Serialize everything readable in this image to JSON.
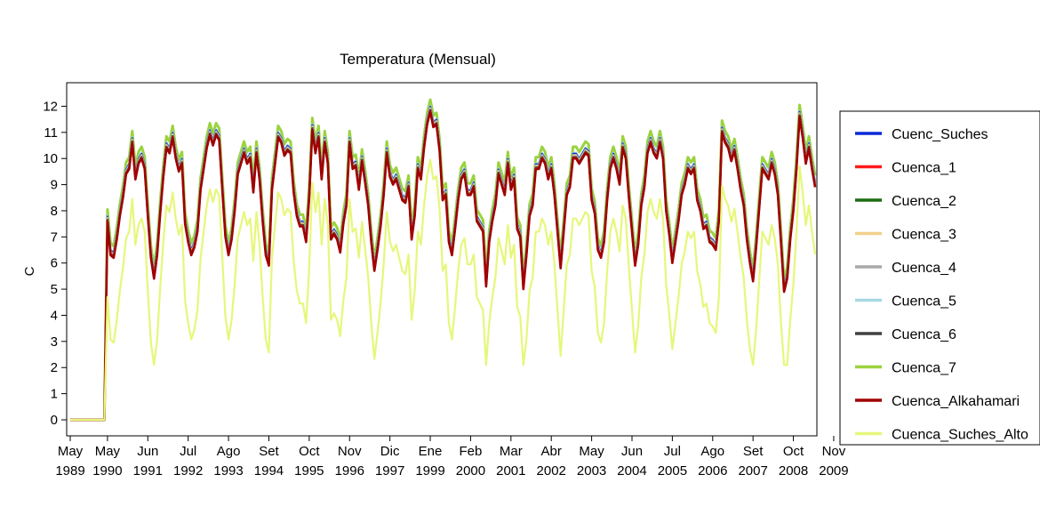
{
  "chart_data": {
    "type": "line",
    "title": "Temperatura (Mensual)",
    "xlabel": "",
    "ylabel": "C",
    "ylim": [
      0,
      12.9
    ],
    "yticks": [
      0,
      1,
      2,
      3,
      4,
      5,
      6,
      7,
      8,
      9,
      10,
      11,
      12
    ],
    "grid": false,
    "legend_position": "right",
    "x_tick_labels": [
      {
        "month": "May",
        "year": "1989"
      },
      {
        "month": "May",
        "year": "1990"
      },
      {
        "month": "Jun",
        "year": "1991"
      },
      {
        "month": "Jul",
        "year": "1992"
      },
      {
        "month": "Ago",
        "year": "1993"
      },
      {
        "month": "Set",
        "year": "1994"
      },
      {
        "month": "Oct",
        "year": "1995"
      },
      {
        "month": "Nov",
        "year": "1996"
      },
      {
        "month": "Dic",
        "year": "1997"
      },
      {
        "month": "Ene",
        "year": "1999"
      },
      {
        "month": "Feb",
        "year": "2000"
      },
      {
        "month": "Mar",
        "year": "2001"
      },
      {
        "month": "Abr",
        "year": "2002"
      },
      {
        "month": "May",
        "year": "2003"
      },
      {
        "month": "Jun",
        "year": "2004"
      },
      {
        "month": "Jul",
        "year": "2005"
      },
      {
        "month": "Ago",
        "year": "2006"
      },
      {
        "month": "Set",
        "year": "2007"
      },
      {
        "month": "Oct",
        "year": "2008"
      },
      {
        "month": "Nov",
        "year": "2009"
      }
    ],
    "x_tick_months": [
      0,
      12,
      25,
      38,
      51,
      64,
      77,
      90,
      103,
      116,
      129,
      142,
      155,
      168,
      181,
      194,
      207,
      220,
      233,
      246
    ],
    "start_month_index": 0,
    "base_series": {
      "description_free": true,
      "values": [
        0,
        0,
        0,
        0,
        0,
        0,
        0,
        0,
        0,
        0,
        0,
        0,
        7.6,
        6.3,
        6.2,
        6.9,
        7.8,
        8.5,
        9.4,
        9.6,
        10.6,
        9.2,
        9.8,
        10.0,
        9.6,
        7.8,
        6.2,
        5.4,
        6.3,
        7.9,
        9.3,
        10.4,
        10.2,
        10.8,
        10.0,
        9.5,
        9.8,
        7.5,
        6.8,
        6.3,
        6.6,
        7.2,
        8.8,
        9.6,
        10.4,
        10.9,
        10.5,
        10.9,
        10.7,
        8.8,
        7.0,
        6.3,
        6.9,
        8.0,
        9.4,
        9.8,
        10.2,
        9.8,
        10.0,
        8.7,
        10.2,
        9.2,
        7.6,
        6.3,
        5.9,
        8.8,
        9.8,
        10.8,
        10.6,
        10.1,
        10.3,
        10.2,
        8.7,
        7.8,
        7.4,
        7.4,
        6.8,
        8.5,
        11.1,
        10.2,
        10.8,
        9.2,
        10.6,
        9.8,
        6.9,
        7.1,
        6.9,
        6.4,
        7.5,
        8.2,
        10.6,
        9.6,
        9.7,
        8.8,
        9.9,
        9.1,
        8.2,
        6.8,
        5.7,
        6.5,
        7.4,
        8.6,
        10.2,
        9.3,
        9.0,
        9.2,
        8.8,
        8.4,
        8.3,
        8.9,
        6.9,
        7.8,
        9.6,
        9.2,
        10.4,
        11.3,
        11.8,
        11.2,
        11.3,
        10.3,
        8.4,
        8.6,
        6.8,
        6.3,
        7.3,
        8.4,
        9.2,
        9.4,
        8.6,
        8.6,
        8.9,
        7.6,
        7.4,
        7.2,
        5.1,
        6.8,
        7.6,
        8.2,
        9.4,
        9.0,
        8.6,
        9.8,
        8.8,
        9.2,
        7.3,
        7.0,
        5.0,
        6.3,
        7.8,
        8.2,
        9.6,
        9.6,
        10.0,
        9.8,
        9.2,
        9.6,
        8.6,
        7.2,
        5.8,
        7.2,
        8.6,
        8.9,
        10.0,
        10.0,
        9.8,
        10.0,
        10.2,
        10.1,
        8.4,
        7.9,
        6.5,
        6.2,
        6.8,
        8.4,
        9.6,
        10.0,
        9.6,
        9.0,
        10.4,
        10.0,
        8.5,
        7.2,
        5.9,
        6.7,
        8.2,
        8.9,
        10.2,
        10.6,
        10.2,
        10.0,
        10.6,
        10.0,
        8.0,
        7.1,
        6.0,
        6.8,
        7.6,
        8.6,
        9.0,
        9.6,
        9.4,
        9.6,
        8.4,
        8.0,
        7.3,
        7.4,
        6.8,
        6.7,
        6.5,
        7.6,
        11.0,
        10.6,
        10.4,
        9.9,
        10.3,
        9.6,
        8.8,
        8.2,
        6.9,
        6.0,
        5.3,
        6.6,
        8.1,
        9.6,
        9.4,
        9.2,
        9.8,
        9.4,
        8.6,
        6.8,
        4.9,
        5.4,
        6.9,
        8.0,
        9.6,
        11.6,
        10.8,
        9.8,
        10.4,
        9.6,
        8.9
      ]
    },
    "series": [
      {
        "name": "Cuenc_Suches",
        "color": "#0b2bd6",
        "offset": 0.18
      },
      {
        "name": "Cuenca_1",
        "color": "#ff1a1a",
        "offset": 0.02
      },
      {
        "name": "Cuenca_2",
        "color": "#1a6b12",
        "offset": 0.05
      },
      {
        "name": "Cuenca_3",
        "color": "#f2cf8a",
        "offset": 0.1
      },
      {
        "name": "Cuenca_4",
        "color": "#a8a8a8",
        "offset": 0.14
      },
      {
        "name": "Cuenca_5",
        "color": "#a6d8e2",
        "offset": 0.22
      },
      {
        "name": "Cuenca_6",
        "color": "#404040",
        "offset": 0.06
      },
      {
        "name": "Cuenca_7",
        "color": "#9ad33e",
        "offset": 0.45
      },
      {
        "name": "Cuenca_Alkahamari",
        "color": "#a00000",
        "offset": 0.0
      },
      {
        "name": "Cuenca_Suches_Alto",
        "color": "#e6f77a",
        "offset": -2.3
      }
    ]
  },
  "legend": {
    "items": [
      "Cuenc_Suches",
      "Cuenca_1",
      "Cuenca_2",
      "Cuenca_3",
      "Cuenca_4",
      "Cuenca_5",
      "Cuenca_6",
      "Cuenca_7",
      "Cuenca_Alkahamari",
      "Cuenca_Suches_Alto"
    ]
  }
}
